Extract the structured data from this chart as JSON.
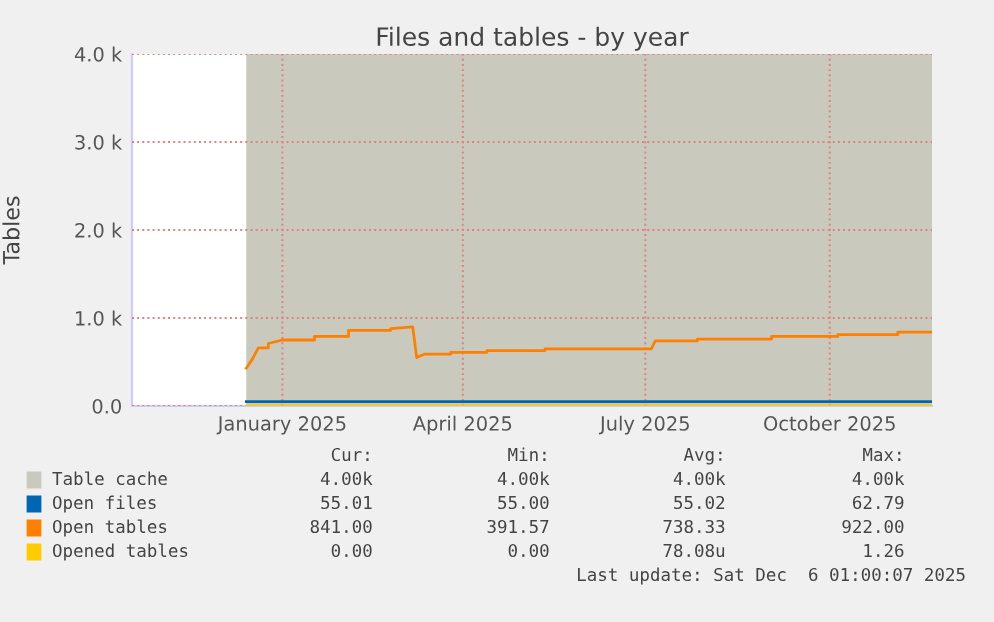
{
  "chart_data": {
    "type": "area",
    "title": "Files and tables - by year",
    "ylabel": "Tables",
    "xlim": [
      "2024-11-01",
      "2025-12-05"
    ],
    "xticks": [
      {
        "value": "2025-01-15",
        "label": "January 2025"
      },
      {
        "value": "2025-04-15",
        "label": "April 2025"
      },
      {
        "value": "2025-07-15",
        "label": "July 2025"
      },
      {
        "value": "2025-10-15",
        "label": "October 2025"
      }
    ],
    "ylim": [
      0,
      4000
    ],
    "yticks": [
      {
        "value": 0,
        "label": "0.0"
      },
      {
        "value": 1000,
        "label": "1.0 k"
      },
      {
        "value": 2000,
        "label": "2.0 k"
      },
      {
        "value": 3000,
        "label": "3.0 k"
      },
      {
        "value": 4000,
        "label": "4.0 k"
      }
    ],
    "grid": true,
    "legend": "bottom",
    "series": [
      {
        "name": "Table cache",
        "color": "#c9c9bd",
        "x": [
          "2024-12-28",
          "2025-12-05"
        ],
        "values": [
          4000,
          4000
        ]
      },
      {
        "name": "Open files",
        "type": "line",
        "color": "#0066b3",
        "x": [
          "2024-12-28",
          "2025-12-05"
        ],
        "values": [
          50,
          50
        ]
      },
      {
        "name": "Open tables",
        "type": "line",
        "color": "#ff8000",
        "x": [
          "2024-12-28",
          "2024-12-31",
          "2025-01-03",
          "2025-01-08",
          "2025-01-08",
          "2025-01-15",
          "2025-01-31",
          "2025-01-31",
          "2025-02-17",
          "2025-02-17",
          "2025-03-10",
          "2025-03-10",
          "2025-03-21",
          "2025-03-23",
          "2025-03-27",
          "2025-04-09",
          "2025-04-09",
          "2025-04-27",
          "2025-04-27",
          "2025-05-26",
          "2025-05-26",
          "2025-07-18",
          "2025-07-20",
          "2025-08-10",
          "2025-08-10",
          "2025-09-16",
          "2025-09-16",
          "2025-10-19",
          "2025-10-19",
          "2025-11-18",
          "2025-11-18",
          "2025-12-05"
        ],
        "values": [
          430,
          530,
          660,
          660,
          710,
          750,
          750,
          790,
          790,
          860,
          860,
          880,
          900,
          550,
          590,
          590,
          610,
          610,
          630,
          630,
          650,
          650,
          740,
          740,
          760,
          760,
          790,
          790,
          810,
          810,
          840,
          840
        ]
      },
      {
        "name": "Opened tables",
        "type": "line",
        "color": "#ffcc00",
        "x": [
          "2024-12-28",
          "2025-12-05"
        ],
        "values": [
          0,
          0
        ]
      }
    ],
    "annotations": [
      "Cur:",
      "Min:",
      "Avg:",
      "Max:",
      "4.00k",
      "4.00k",
      "4.00k",
      "4.00k",
      "55.01",
      "55.00",
      "55.02",
      "62.79",
      "841.00",
      "391.57",
      "738.33",
      "922.00",
      "0.00",
      "0.00",
      "78.08u",
      "1.26",
      "Last update: Sat Dec  6 01:00:07 2025"
    ]
  }
}
